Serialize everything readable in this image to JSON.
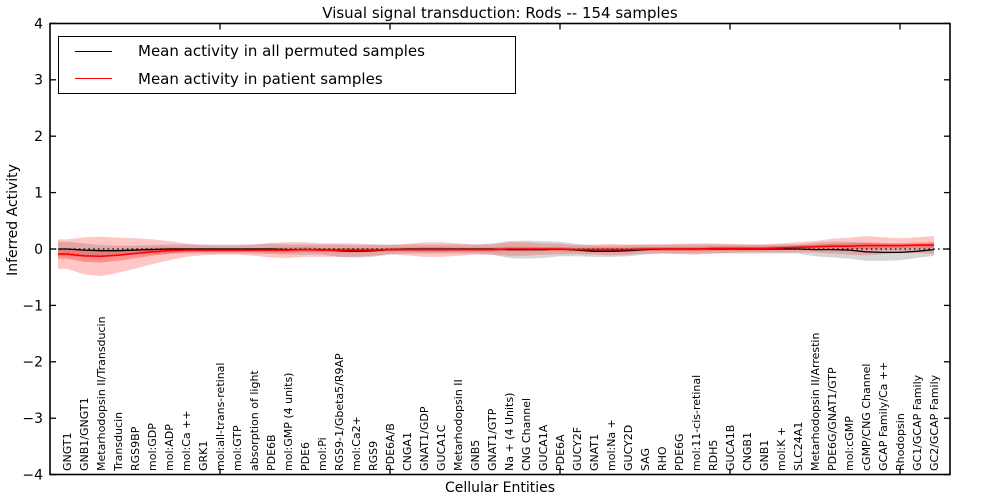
{
  "title": "Visual signal transduction: Rods -- 154 samples",
  "legend": {
    "items": [
      {
        "label": "Mean activity in all permuted samples",
        "color": "#000000"
      },
      {
        "label": "Mean activity in patient samples",
        "color": "#ff0000"
      }
    ]
  },
  "colors": {
    "patient_line": "#ff0000",
    "patient_band": "#ff3333",
    "permuted_line": "#000000",
    "permuted_band": "#777777",
    "frame": "#000000",
    "background": "#ffffff"
  },
  "chart_data": {
    "type": "line",
    "title": "Visual signal transduction: Rods -- 154 samples",
    "xlabel": "Cellular Entities",
    "ylabel": "Inferred Activity",
    "ylim": [
      -4,
      4
    ],
    "ytick_labels": [
      "4",
      "3",
      "2",
      "1",
      "0",
      "−1",
      "−2",
      "−3",
      "−4"
    ],
    "x_major_tick_indices": [
      9,
      19,
      29,
      39,
      49
    ],
    "grid": false,
    "legend_position": "upper left",
    "zero_line": {
      "style": "dotted",
      "color": "#000000",
      "y": 0
    },
    "categories": [
      "GNGT1",
      "GNB1/GNGT1",
      "Metarhodopsin II/Transducin",
      "Transducin",
      "RGS9BP",
      "mol:GDP",
      "mol:ADP",
      "mol:Ca ++",
      "GRK1",
      "mol:all-trans-retinal",
      "mol:GTP",
      "absorption of light",
      "PDE6B",
      "mol:GMP (4 units)",
      "PDE6",
      "mol:Pi",
      "RGS9-1/Gbeta5/R9AP",
      "mol:Ca2+",
      "RGS9",
      "PDE6A/B",
      "CNGA1",
      "GNAT1/GDP",
      "GUCA1C",
      "Metarhodopsin II",
      "GNB5",
      "GNAT1/GTP",
      "Na + (4 Units)",
      "CNG Channel",
      "GUCA1A",
      "PDE6A",
      "GUCY2F",
      "GNAT1",
      "mol:Na +",
      "GUCY2D",
      "SAG",
      "RHO",
      "PDE6G",
      "mol:11-cis-retinal",
      "RDH5",
      "GUCA1B",
      "CNGB1",
      "GNB1",
      "mol:K +",
      "SLC24A1",
      "Metarhodopsin II/Arrestin",
      "PDE6G/GNAT1/GTP",
      "mol:cGMP",
      "cGMP/CNG Channel",
      "GCAP Family/Ca ++",
      "Rhodopsin",
      "GC1/GCAP Family",
      "GC2/GCAP Family"
    ],
    "series": [
      {
        "name": "Mean activity in all permuted samples",
        "color": "#000000",
        "values": [
          0.0,
          -0.02,
          -0.03,
          -0.03,
          -0.02,
          -0.01,
          0.0,
          0.0,
          0.0,
          0.0,
          0.0,
          0.0,
          0.0,
          -0.01,
          -0.01,
          -0.01,
          -0.03,
          -0.04,
          -0.03,
          -0.01,
          0.0,
          0.0,
          0.0,
          0.0,
          0.0,
          0.0,
          -0.01,
          -0.01,
          -0.01,
          0.0,
          -0.02,
          -0.04,
          -0.04,
          -0.03,
          -0.01,
          0.0,
          0.0,
          0.0,
          0.0,
          0.0,
          0.0,
          0.0,
          0.0,
          0.0,
          -0.01,
          -0.01,
          -0.02,
          -0.05,
          -0.06,
          -0.06,
          -0.04,
          -0.01
        ],
        "band_halfwidth": [
          0.13,
          0.12,
          0.1,
          0.09,
          0.08,
          0.08,
          0.08,
          0.08,
          0.08,
          0.08,
          0.08,
          0.08,
          0.09,
          0.09,
          0.09,
          0.09,
          0.11,
          0.11,
          0.11,
          0.09,
          0.08,
          0.08,
          0.08,
          0.08,
          0.08,
          0.1,
          0.15,
          0.16,
          0.15,
          0.13,
          0.11,
          0.1,
          0.1,
          0.1,
          0.09,
          0.08,
          0.08,
          0.08,
          0.08,
          0.08,
          0.08,
          0.08,
          0.08,
          0.08,
          0.12,
          0.14,
          0.15,
          0.16,
          0.15,
          0.14,
          0.12,
          0.11
        ]
      },
      {
        "name": "Mean activity in patient samples",
        "color": "#ff0000",
        "values": [
          -0.09,
          -0.12,
          -0.13,
          -0.11,
          -0.08,
          -0.05,
          -0.03,
          -0.02,
          -0.02,
          -0.02,
          -0.02,
          -0.02,
          -0.02,
          -0.02,
          -0.01,
          -0.02,
          -0.02,
          -0.02,
          -0.02,
          -0.01,
          -0.01,
          -0.01,
          -0.01,
          -0.01,
          -0.01,
          -0.01,
          0.0,
          0.0,
          0.0,
          0.0,
          -0.01,
          -0.01,
          -0.01,
          -0.01,
          0.0,
          0.0,
          0.0,
          0.0,
          0.01,
          0.01,
          0.01,
          0.01,
          0.02,
          0.03,
          0.04,
          0.05,
          0.05,
          0.06,
          0.06,
          0.06,
          0.07,
          0.07
        ],
        "band_halfwidth": [
          0.26,
          0.33,
          0.35,
          0.31,
          0.27,
          0.22,
          0.17,
          0.12,
          0.09,
          0.08,
          0.08,
          0.1,
          0.13,
          0.14,
          0.13,
          0.12,
          0.12,
          0.12,
          0.1,
          0.08,
          0.1,
          0.13,
          0.13,
          0.11,
          0.09,
          0.09,
          0.12,
          0.12,
          0.1,
          0.09,
          0.08,
          0.09,
          0.1,
          0.09,
          0.08,
          0.08,
          0.09,
          0.1,
          0.09,
          0.08,
          0.07,
          0.07,
          0.08,
          0.09,
          0.1,
          0.13,
          0.15,
          0.17,
          0.15,
          0.13,
          0.14,
          0.16
        ]
      }
    ]
  }
}
